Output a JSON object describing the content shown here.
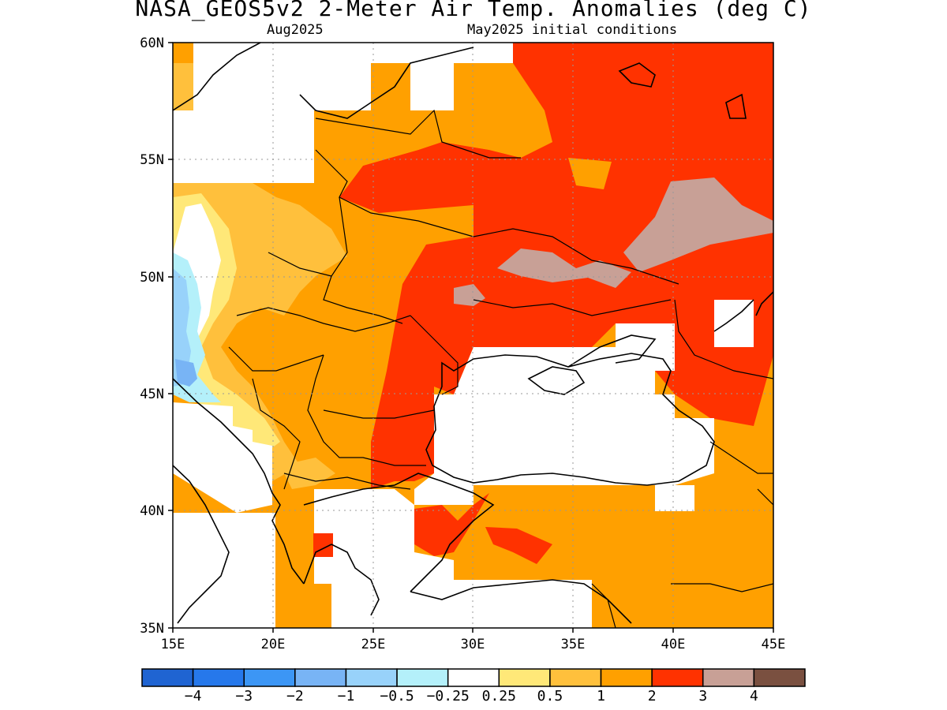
{
  "title": "NASA_GEOS5v2 2-Meter Air Temp. Anomalies (deg C)",
  "subtitle_left": "Aug2025",
  "subtitle_right": "May2025 initial conditions",
  "map": {
    "lon_range": [
      15,
      45
    ],
    "lat_range": [
      35,
      60
    ],
    "lon_ticks": [
      "15E",
      "20E",
      "25E",
      "30E",
      "35E",
      "40E",
      "45E"
    ],
    "lat_ticks": [
      "35N",
      "40N",
      "45N",
      "50N",
      "55N",
      "60N"
    ],
    "gridlines": "dotted"
  },
  "colorbar": {
    "colors": [
      "#1f64d2",
      "#2678eb",
      "#3c96f5",
      "#78b4f5",
      "#98d2fa",
      "#b4f0fa",
      "#ffffff",
      "#ffe878",
      "#ffc03c",
      "#ffa000",
      "#ff3200",
      "#c8a096",
      "#7a5040"
    ],
    "labels": [
      "-4",
      "-3",
      "-2",
      "-1",
      "-0.5",
      "-0.25",
      "0.25",
      "0.5",
      "1",
      "2",
      "3",
      "4"
    ]
  }
}
